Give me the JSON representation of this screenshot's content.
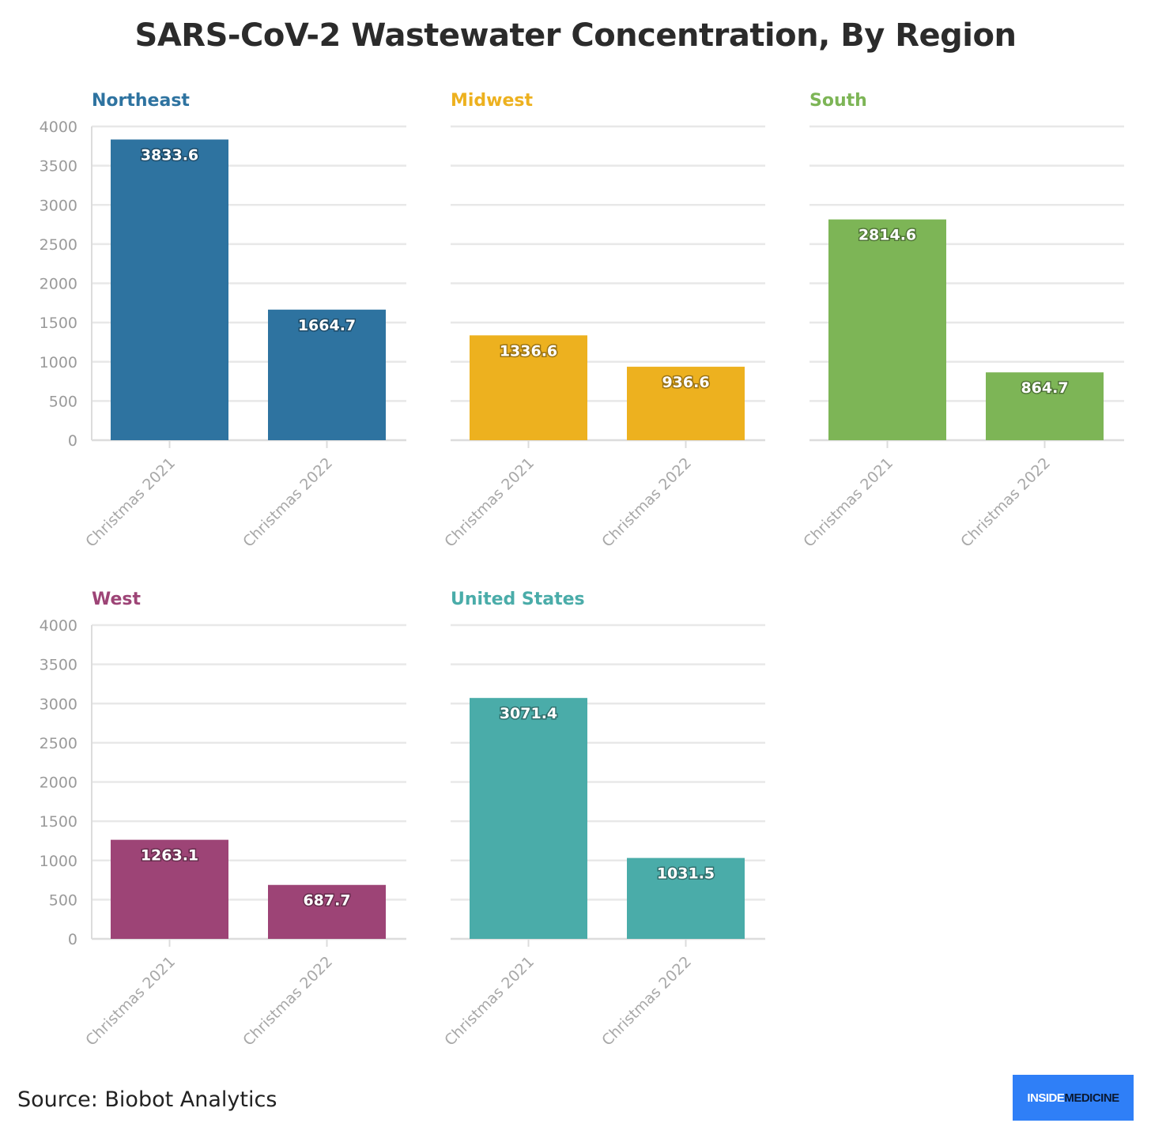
{
  "title": "SARS-CoV-2 Wastewater Concentration, By Region",
  "source": "Source: Biobot Analytics",
  "logo": {
    "part1": "INSIDE",
    "part2": "MEDICINE"
  },
  "chart_data": [
    {
      "type": "bar",
      "title": "Northeast",
      "color": "#2e73a0",
      "categories": [
        "Christmas 2021",
        "Christmas 2022"
      ],
      "values": [
        3833.6,
        1664.7
      ],
      "ylim": [
        0,
        4000
      ],
      "yticks": [
        0,
        500,
        1000,
        1500,
        2000,
        2500,
        3000,
        3500,
        4000
      ],
      "show_y_tick_labels": true,
      "grid": true
    },
    {
      "type": "bar",
      "title": "Midwest",
      "color": "#edb11f",
      "categories": [
        "Christmas 2021",
        "Christmas 2022"
      ],
      "values": [
        1336.6,
        936.6
      ],
      "ylim": [
        0,
        4000
      ],
      "yticks": [
        0,
        500,
        1000,
        1500,
        2000,
        2500,
        3000,
        3500,
        4000
      ],
      "show_y_tick_labels": false,
      "grid": true
    },
    {
      "type": "bar",
      "title": "South",
      "color": "#7db556",
      "categories": [
        "Christmas 2021",
        "Christmas 2022"
      ],
      "values": [
        2814.6,
        864.7
      ],
      "ylim": [
        0,
        4000
      ],
      "yticks": [
        0,
        500,
        1000,
        1500,
        2000,
        2500,
        3000,
        3500,
        4000
      ],
      "show_y_tick_labels": false,
      "grid": true
    },
    {
      "type": "bar",
      "title": "West",
      "color": "#9d4476",
      "categories": [
        "Christmas 2021",
        "Christmas 2022"
      ],
      "values": [
        1263.1,
        687.7
      ],
      "ylim": [
        0,
        4000
      ],
      "yticks": [
        0,
        500,
        1000,
        1500,
        2000,
        2500,
        3000,
        3500,
        4000
      ],
      "show_y_tick_labels": true,
      "grid": true
    },
    {
      "type": "bar",
      "title": "United States",
      "color": "#4aaca9",
      "categories": [
        "Christmas 2021",
        "Christmas 2022"
      ],
      "values": [
        3071.4,
        1031.5
      ],
      "ylim": [
        0,
        4000
      ],
      "yticks": [
        0,
        500,
        1000,
        1500,
        2000,
        2500,
        3000,
        3500,
        4000
      ],
      "show_y_tick_labels": false,
      "grid": true
    }
  ]
}
